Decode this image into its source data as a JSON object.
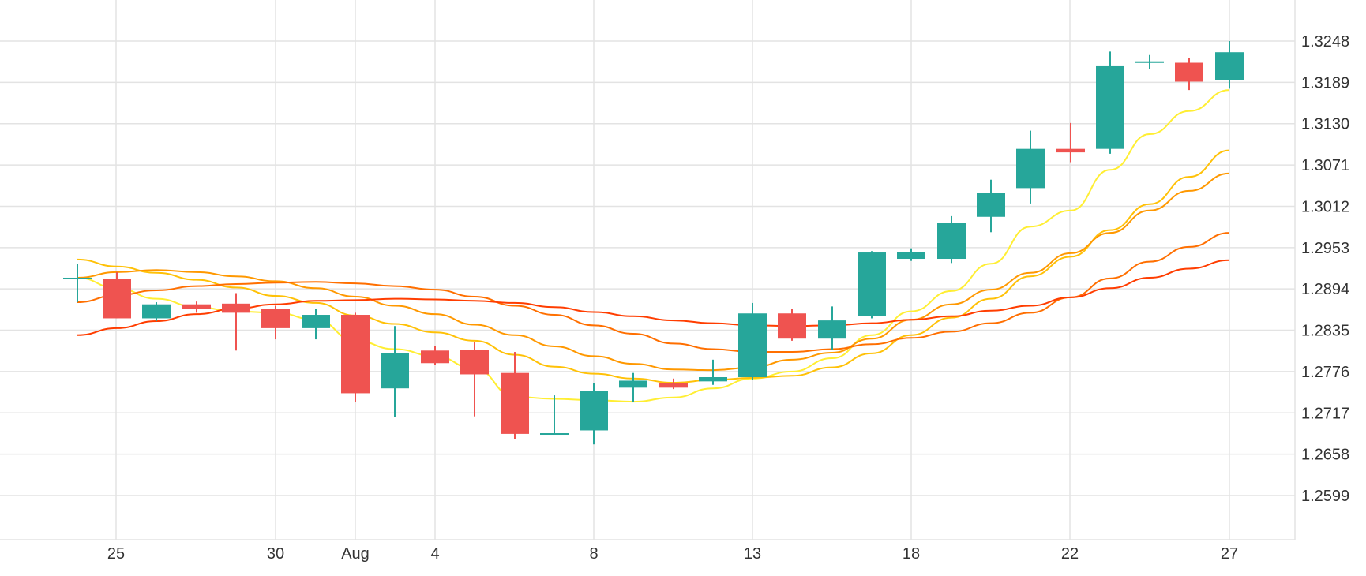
{
  "chart_data": {
    "type": "candlestick",
    "title": "",
    "xlabel": "",
    "ylabel": "",
    "x_tick_labels": [
      "25",
      "30",
      "Aug",
      "4",
      "8",
      "13",
      "18",
      "22",
      "27"
    ],
    "y_tick_labels": [
      "1.2599",
      "1.2658",
      "1.2717",
      "1.2776",
      "1.2835",
      "1.2894",
      "1.2953",
      "1.3012",
      "1.3071",
      "1.3130",
      "1.3189",
      "1.3248"
    ],
    "ylim": [
      1.254,
      1.329
    ],
    "grid": true,
    "legend": "none",
    "candles": [
      {
        "date": "2018-07-23",
        "open": 1.291,
        "high": 1.293,
        "low": 1.2875,
        "close": 1.291
      },
      {
        "date": "2018-07-24",
        "open": 1.2908,
        "high": 1.2918,
        "low": 1.2852,
        "close": 1.2852
      },
      {
        "date": "2018-07-25",
        "open": 1.2852,
        "high": 1.2875,
        "low": 1.2848,
        "close": 1.2872
      },
      {
        "date": "2018-07-26",
        "open": 1.2872,
        "high": 1.2876,
        "low": 1.286,
        "close": 1.2866
      },
      {
        "date": "2018-07-27",
        "open": 1.2873,
        "high": 1.2888,
        "low": 1.2806,
        "close": 1.286
      },
      {
        "date": "2018-07-30",
        "open": 1.2865,
        "high": 1.287,
        "low": 1.2822,
        "close": 1.2838
      },
      {
        "date": "2018-07-31",
        "open": 1.2838,
        "high": 1.2866,
        "low": 1.2822,
        "close": 1.2857
      },
      {
        "date": "2018-08-01",
        "open": 1.2857,
        "high": 1.286,
        "low": 1.2733,
        "close": 1.2745
      },
      {
        "date": "2018-08-02",
        "open": 1.2752,
        "high": 1.2841,
        "low": 1.2711,
        "close": 1.2802
      },
      {
        "date": "2018-08-03",
        "open": 1.2806,
        "high": 1.2812,
        "low": 1.2786,
        "close": 1.2788
      },
      {
        "date": "2018-08-06",
        "open": 1.2807,
        "high": 1.2818,
        "low": 1.2712,
        "close": 1.2772
      },
      {
        "date": "2018-08-07",
        "open": 1.2774,
        "high": 1.2804,
        "low": 1.2679,
        "close": 1.2687
      },
      {
        "date": "2018-08-08",
        "open": 1.2687,
        "high": 1.2742,
        "low": 1.2686,
        "close": 1.2688
      },
      {
        "date": "2018-08-09",
        "open": 1.2692,
        "high": 1.2759,
        "low": 1.2672,
        "close": 1.2748
      },
      {
        "date": "2018-08-10",
        "open": 1.2753,
        "high": 1.2774,
        "low": 1.2732,
        "close": 1.2763
      },
      {
        "date": "2018-08-13",
        "open": 1.276,
        "high": 1.2766,
        "low": 1.2751,
        "close": 1.2753
      },
      {
        "date": "2018-08-14",
        "open": 1.2762,
        "high": 1.2793,
        "low": 1.2757,
        "close": 1.2768
      },
      {
        "date": "2018-08-15",
        "open": 1.2768,
        "high": 1.2874,
        "low": 1.2764,
        "close": 1.2859
      },
      {
        "date": "2018-08-16",
        "open": 1.2859,
        "high": 1.2866,
        "low": 1.282,
        "close": 1.2823
      },
      {
        "date": "2018-08-17",
        "open": 1.2823,
        "high": 1.2869,
        "low": 1.2807,
        "close": 1.2849
      },
      {
        "date": "2018-08-20",
        "open": 1.2855,
        "high": 1.2948,
        "low": 1.2852,
        "close": 1.2946
      },
      {
        "date": "2018-08-21",
        "open": 1.2937,
        "high": 1.2952,
        "low": 1.2934,
        "close": 1.2947
      },
      {
        "date": "2018-08-22",
        "open": 1.2937,
        "high": 1.2998,
        "low": 1.2931,
        "close": 1.2988
      },
      {
        "date": "2018-08-23",
        "open": 1.2997,
        "high": 1.305,
        "low": 1.2975,
        "close": 1.3031
      },
      {
        "date": "2018-08-24",
        "open": 1.3038,
        "high": 1.312,
        "low": 1.3016,
        "close": 1.3094
      },
      {
        "date": "2018-08-27",
        "open": 1.3094,
        "high": 1.3131,
        "low": 1.3075,
        "close": 1.3089
      },
      {
        "date": "2018-08-28",
        "open": 1.3094,
        "high": 1.3233,
        "low": 1.3087,
        "close": 1.3212
      },
      {
        "date": "2018-08-29",
        "open": 1.3219,
        "high": 1.3228,
        "low": 1.3208,
        "close": 1.3219
      },
      {
        "date": "2018-08-30",
        "open": 1.3217,
        "high": 1.3224,
        "low": 1.3178,
        "close": 1.319
      },
      {
        "date": "2018-08-31",
        "open": 1.3192,
        "high": 1.3248,
        "low": 1.318,
        "close": 1.3232
      }
    ],
    "moving_averages": [
      {
        "color": "#ffee33",
        "values": [
          1.291,
          1.2895,
          1.288,
          1.2868,
          1.2862,
          1.286,
          1.285,
          1.282,
          1.2808,
          1.2798,
          1.278,
          1.274,
          1.2737,
          1.2735,
          1.2733,
          1.2739,
          1.2752,
          1.2766,
          1.2776,
          1.2795,
          1.2828,
          1.2862,
          1.2891,
          1.293,
          1.2983,
          1.3006,
          1.3064,
          1.3115,
          1.3148,
          1.3178
        ]
      },
      {
        "color": "#ffc107",
        "values": [
          1.2936,
          1.2926,
          1.2917,
          1.2907,
          1.2896,
          1.2884,
          1.2874,
          1.2856,
          1.2844,
          1.2832,
          1.282,
          1.28,
          1.2783,
          1.2773,
          1.2766,
          1.276,
          1.2764,
          1.2767,
          1.277,
          1.2782,
          1.2802,
          1.2828,
          1.2853,
          1.288,
          1.2912,
          1.294,
          1.2978,
          1.3015,
          1.3054,
          1.3092
        ]
      },
      {
        "color": "#ff9800",
        "values": [
          1.291,
          1.2918,
          1.2921,
          1.2918,
          1.2912,
          1.2905,
          1.2895,
          1.2883,
          1.287,
          1.2858,
          1.2843,
          1.2828,
          1.2812,
          1.2798,
          1.2787,
          1.2779,
          1.2778,
          1.2782,
          1.2793,
          1.2803,
          1.2823,
          1.285,
          1.2872,
          1.2893,
          1.2917,
          1.2945,
          1.2974,
          1.3006,
          1.3034,
          1.3059
        ]
      },
      {
        "color": "#ff6f00",
        "values": [
          1.2875,
          1.2885,
          1.2892,
          1.2898,
          1.2901,
          1.2903,
          1.2904,
          1.2902,
          1.2898,
          1.2893,
          1.2883,
          1.287,
          1.2857,
          1.2842,
          1.283,
          1.2816,
          1.2808,
          1.2804,
          1.2804,
          1.2808,
          1.2815,
          1.2824,
          1.2833,
          1.2845,
          1.286,
          1.2882,
          1.2909,
          1.2933,
          1.2954,
          1.2974
        ]
      },
      {
        "color": "#ff3d00",
        "values": [
          1.2828,
          1.2838,
          1.2848,
          1.2858,
          1.2866,
          1.2872,
          1.2877,
          1.2878,
          1.288,
          1.2879,
          1.2877,
          1.2874,
          1.2868,
          1.2861,
          1.2855,
          1.2849,
          1.2845,
          1.2842,
          1.2841,
          1.2842,
          1.2845,
          1.285,
          1.2855,
          1.2863,
          1.287,
          1.2882,
          1.2895,
          1.291,
          1.2923,
          1.2935
        ]
      }
    ],
    "colors": {
      "up": "#26a69a",
      "down": "#ef5350",
      "grid": "#e3e3e3",
      "text": "#333333",
      "axis": "#dddddd"
    }
  }
}
